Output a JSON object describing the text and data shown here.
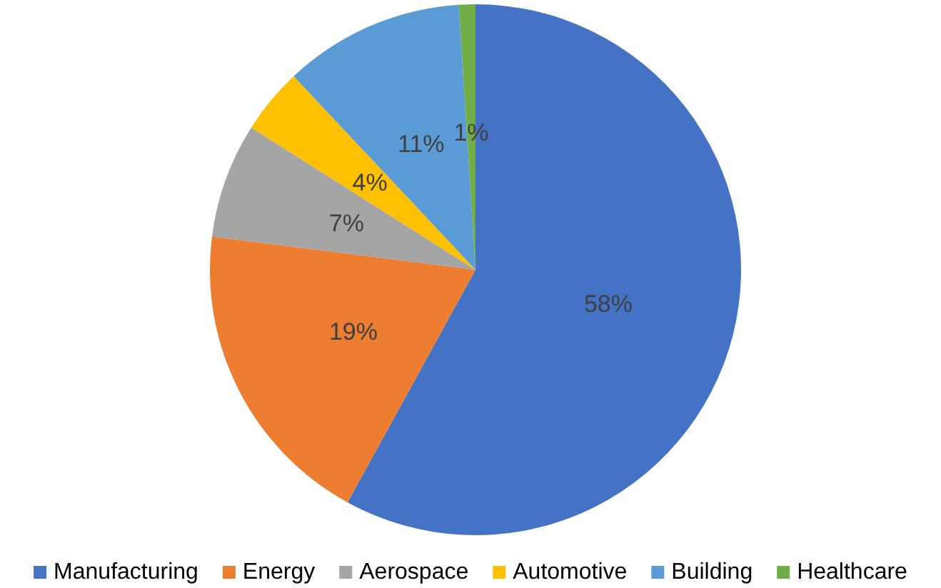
{
  "chart_data": {
    "type": "pie",
    "categories": [
      "Manufacturing",
      "Energy",
      "Aerospace",
      "Automotive",
      "Building",
      "Healthcare"
    ],
    "values": [
      58,
      19,
      7,
      4,
      11,
      1
    ],
    "value_labels": [
      "58%",
      "19%",
      "7%",
      "4%",
      "11%",
      "1%"
    ],
    "colors": [
      "#4472c4",
      "#ed7d31",
      "#a5a5a5",
      "#ffc000",
      "#5b9bd5",
      "#70ad47"
    ],
    "legend": "bottom"
  }
}
